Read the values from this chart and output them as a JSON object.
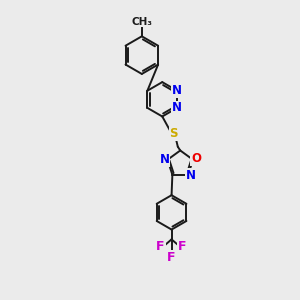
{
  "background_color": "#ebebeb",
  "bond_color": "#1a1a1a",
  "bond_width": 1.4,
  "atom_colors": {
    "N": "#0000ee",
    "S": "#ccaa00",
    "O": "#ee0000",
    "F": "#cc00cc",
    "C": "#1a1a1a"
  },
  "font_size_atom": 8.5,
  "methyl_label": "CH₃",
  "methyl_fontsize": 7.5,
  "F_fontsize": 9.0
}
